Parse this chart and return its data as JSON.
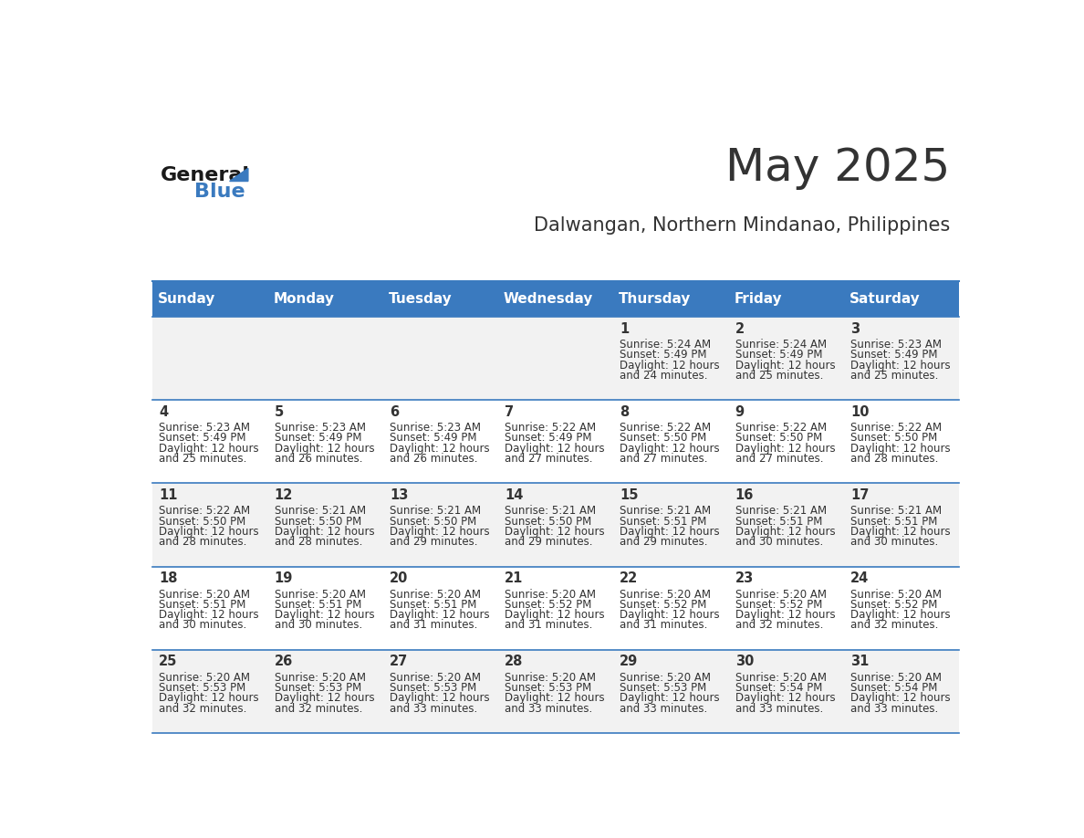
{
  "title": "May 2025",
  "subtitle": "Dalwangan, Northern Mindanao, Philippines",
  "header_bg": "#3a7abf",
  "header_text": "#ffffff",
  "row_bg_odd": "#f2f2f2",
  "row_bg_even": "#ffffff",
  "border_color": "#3a7abf",
  "text_color": "#333333",
  "day_headers": [
    "Sunday",
    "Monday",
    "Tuesday",
    "Wednesday",
    "Thursday",
    "Friday",
    "Saturday"
  ],
  "days": [
    {
      "day": 1,
      "col": 4,
      "row": 0,
      "sunrise": "5:24 AM",
      "sunset": "5:49 PM",
      "daylight": "12 hours and 24 minutes."
    },
    {
      "day": 2,
      "col": 5,
      "row": 0,
      "sunrise": "5:24 AM",
      "sunset": "5:49 PM",
      "daylight": "12 hours and 25 minutes."
    },
    {
      "day": 3,
      "col": 6,
      "row": 0,
      "sunrise": "5:23 AM",
      "sunset": "5:49 PM",
      "daylight": "12 hours and 25 minutes."
    },
    {
      "day": 4,
      "col": 0,
      "row": 1,
      "sunrise": "5:23 AM",
      "sunset": "5:49 PM",
      "daylight": "12 hours and 25 minutes."
    },
    {
      "day": 5,
      "col": 1,
      "row": 1,
      "sunrise": "5:23 AM",
      "sunset": "5:49 PM",
      "daylight": "12 hours and 26 minutes."
    },
    {
      "day": 6,
      "col": 2,
      "row": 1,
      "sunrise": "5:23 AM",
      "sunset": "5:49 PM",
      "daylight": "12 hours and 26 minutes."
    },
    {
      "day": 7,
      "col": 3,
      "row": 1,
      "sunrise": "5:22 AM",
      "sunset": "5:49 PM",
      "daylight": "12 hours and 27 minutes."
    },
    {
      "day": 8,
      "col": 4,
      "row": 1,
      "sunrise": "5:22 AM",
      "sunset": "5:50 PM",
      "daylight": "12 hours and 27 minutes."
    },
    {
      "day": 9,
      "col": 5,
      "row": 1,
      "sunrise": "5:22 AM",
      "sunset": "5:50 PM",
      "daylight": "12 hours and 27 minutes."
    },
    {
      "day": 10,
      "col": 6,
      "row": 1,
      "sunrise": "5:22 AM",
      "sunset": "5:50 PM",
      "daylight": "12 hours and 28 minutes."
    },
    {
      "day": 11,
      "col": 0,
      "row": 2,
      "sunrise": "5:22 AM",
      "sunset": "5:50 PM",
      "daylight": "12 hours and 28 minutes."
    },
    {
      "day": 12,
      "col": 1,
      "row": 2,
      "sunrise": "5:21 AM",
      "sunset": "5:50 PM",
      "daylight": "12 hours and 28 minutes."
    },
    {
      "day": 13,
      "col": 2,
      "row": 2,
      "sunrise": "5:21 AM",
      "sunset": "5:50 PM",
      "daylight": "12 hours and 29 minutes."
    },
    {
      "day": 14,
      "col": 3,
      "row": 2,
      "sunrise": "5:21 AM",
      "sunset": "5:50 PM",
      "daylight": "12 hours and 29 minutes."
    },
    {
      "day": 15,
      "col": 4,
      "row": 2,
      "sunrise": "5:21 AM",
      "sunset": "5:51 PM",
      "daylight": "12 hours and 29 minutes."
    },
    {
      "day": 16,
      "col": 5,
      "row": 2,
      "sunrise": "5:21 AM",
      "sunset": "5:51 PM",
      "daylight": "12 hours and 30 minutes."
    },
    {
      "day": 17,
      "col": 6,
      "row": 2,
      "sunrise": "5:21 AM",
      "sunset": "5:51 PM",
      "daylight": "12 hours and 30 minutes."
    },
    {
      "day": 18,
      "col": 0,
      "row": 3,
      "sunrise": "5:20 AM",
      "sunset": "5:51 PM",
      "daylight": "12 hours and 30 minutes."
    },
    {
      "day": 19,
      "col": 1,
      "row": 3,
      "sunrise": "5:20 AM",
      "sunset": "5:51 PM",
      "daylight": "12 hours and 30 minutes."
    },
    {
      "day": 20,
      "col": 2,
      "row": 3,
      "sunrise": "5:20 AM",
      "sunset": "5:51 PM",
      "daylight": "12 hours and 31 minutes."
    },
    {
      "day": 21,
      "col": 3,
      "row": 3,
      "sunrise": "5:20 AM",
      "sunset": "5:52 PM",
      "daylight": "12 hours and 31 minutes."
    },
    {
      "day": 22,
      "col": 4,
      "row": 3,
      "sunrise": "5:20 AM",
      "sunset": "5:52 PM",
      "daylight": "12 hours and 31 minutes."
    },
    {
      "day": 23,
      "col": 5,
      "row": 3,
      "sunrise": "5:20 AM",
      "sunset": "5:52 PM",
      "daylight": "12 hours and 32 minutes."
    },
    {
      "day": 24,
      "col": 6,
      "row": 3,
      "sunrise": "5:20 AM",
      "sunset": "5:52 PM",
      "daylight": "12 hours and 32 minutes."
    },
    {
      "day": 25,
      "col": 0,
      "row": 4,
      "sunrise": "5:20 AM",
      "sunset": "5:53 PM",
      "daylight": "12 hours and 32 minutes."
    },
    {
      "day": 26,
      "col": 1,
      "row": 4,
      "sunrise": "5:20 AM",
      "sunset": "5:53 PM",
      "daylight": "12 hours and 32 minutes."
    },
    {
      "day": 27,
      "col": 2,
      "row": 4,
      "sunrise": "5:20 AM",
      "sunset": "5:53 PM",
      "daylight": "12 hours and 33 minutes."
    },
    {
      "day": 28,
      "col": 3,
      "row": 4,
      "sunrise": "5:20 AM",
      "sunset": "5:53 PM",
      "daylight": "12 hours and 33 minutes."
    },
    {
      "day": 29,
      "col": 4,
      "row": 4,
      "sunrise": "5:20 AM",
      "sunset": "5:53 PM",
      "daylight": "12 hours and 33 minutes."
    },
    {
      "day": 30,
      "col": 5,
      "row": 4,
      "sunrise": "5:20 AM",
      "sunset": "5:54 PM",
      "daylight": "12 hours and 33 minutes."
    },
    {
      "day": 31,
      "col": 6,
      "row": 4,
      "sunrise": "5:20 AM",
      "sunset": "5:54 PM",
      "daylight": "12 hours and 33 minutes."
    }
  ],
  "num_rows": 5,
  "num_cols": 7,
  "logo_general_color": "#1a1a1a",
  "logo_blue_color": "#3a7abf",
  "logo_triangle_color": "#3a7abf"
}
